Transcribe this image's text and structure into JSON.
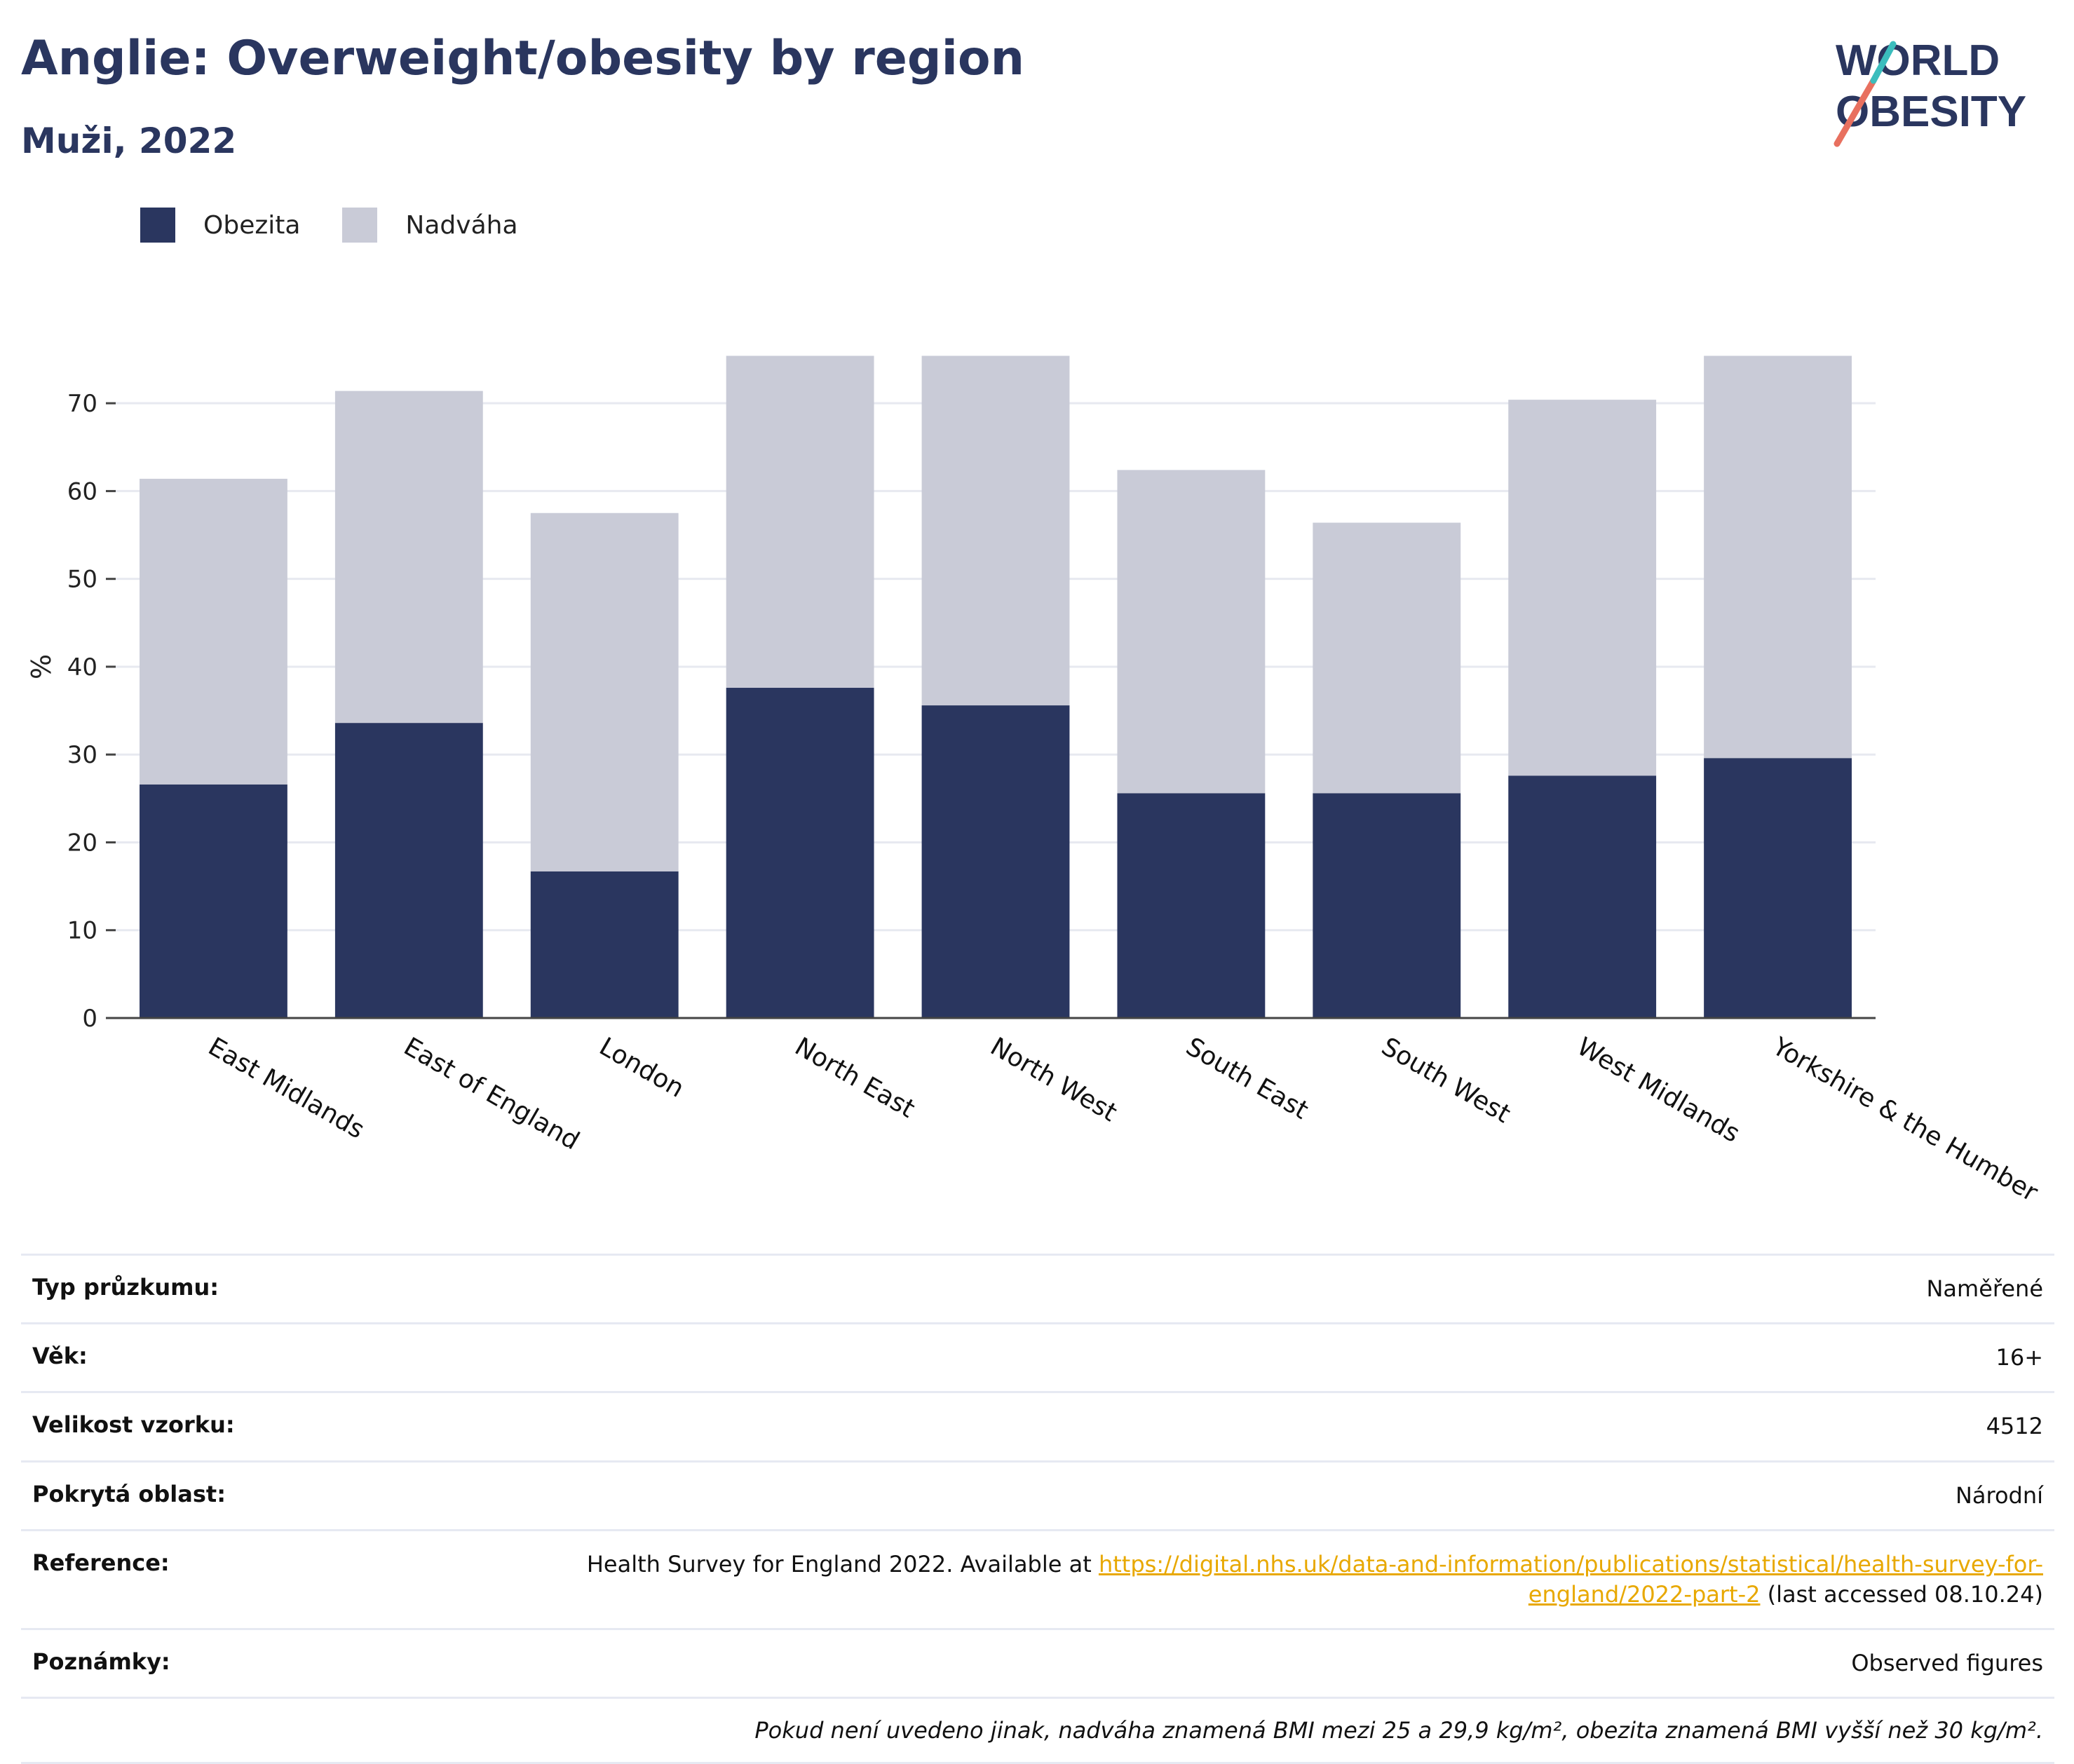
{
  "header": {
    "title": "Anglie: Overweight/obesity by region",
    "subtitle": "Muži, 2022"
  },
  "logo": {
    "line1": "WORLD",
    "line2": "OBESITY"
  },
  "colors": {
    "obezita": "#2a365f",
    "nadvaha": "#c9cbd7",
    "accent": "#e8a800"
  },
  "chart_data": {
    "type": "bar",
    "stacked": true,
    "categories": [
      "East Midlands",
      "East of England",
      "London",
      "North East",
      "North West",
      "South East",
      "South West",
      "West Midlands",
      "Yorkshire & the Humber"
    ],
    "series": [
      {
        "name": "Obezita",
        "values": [
          26.6,
          33.6,
          16.7,
          37.6,
          35.6,
          25.6,
          25.6,
          27.6,
          29.6
        ]
      },
      {
        "name": "Nadváha",
        "values": [
          34.8,
          37.8,
          40.8,
          37.8,
          39.8,
          36.8,
          30.8,
          42.8,
          45.8
        ]
      }
    ],
    "ylabel": "%",
    "ylim": [
      0,
      76
    ],
    "yticks": [
      0,
      10,
      20,
      30,
      40,
      50,
      60,
      70
    ],
    "grid": true,
    "legend": "top-left"
  },
  "info": {
    "rows": [
      {
        "label": "Typ průzkumu:",
        "value": "Naměřené"
      },
      {
        "label": "Věk:",
        "value": "16+"
      },
      {
        "label": "Velikost vzorku:",
        "value": "4512"
      },
      {
        "label": "Pokrytá oblast:",
        "value": "Národní"
      }
    ],
    "reference": {
      "label": "Reference:",
      "prefix": "Health Survey for England 2022. Available at ",
      "link": "https://digital.nhs.uk/data-and-information/publications/statistical/health-survey-for-england/2022-part-2",
      "suffix": " (last accessed 08.10.24)"
    },
    "notes": {
      "label": "Poznámky:",
      "value": "Observed figures"
    },
    "footnote": "Pokud není uvedeno jinak, nadváha znamená BMI mezi 25 a 29,9 kg/m², obezita znamená BMI vyšší než 30 kg/m²."
  }
}
